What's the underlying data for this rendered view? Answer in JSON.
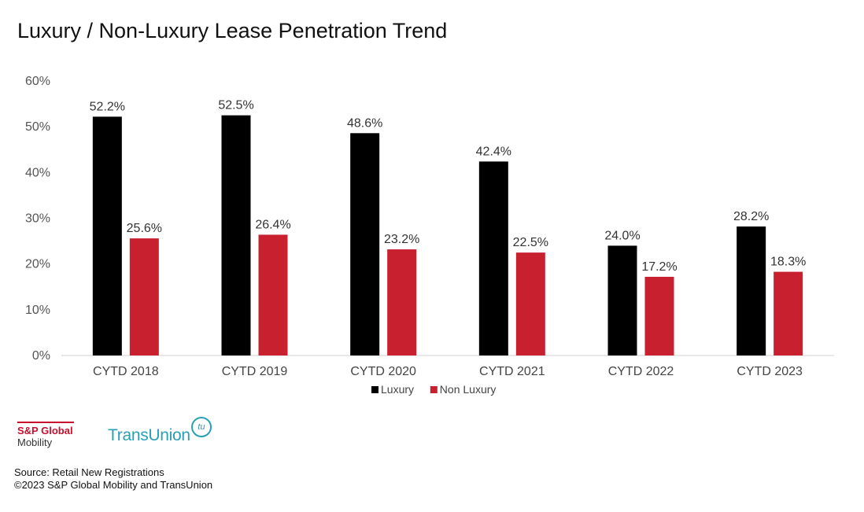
{
  "title": "Luxury / Non-Luxury Lease Penetration Trend",
  "chart_data": {
    "type": "bar",
    "title": "Luxury / Non-Luxury Lease Penetration Trend",
    "categories": [
      "CYTD 2018",
      "CYTD 2019",
      "CYTD 2020",
      "CYTD 2021",
      "CYTD 2022",
      "CYTD 2023"
    ],
    "series": [
      {
        "name": "Luxury",
        "color": "#000000",
        "values": [
          52.2,
          52.5,
          48.6,
          42.4,
          24.0,
          28.2
        ],
        "labels": [
          "52.2%",
          "52.5%",
          "48.6%",
          "42.4%",
          "24.0%",
          "28.2%"
        ]
      },
      {
        "name": "Non Luxury",
        "color": "#c8202f",
        "values": [
          25.6,
          26.4,
          23.2,
          22.5,
          17.2,
          18.3
        ],
        "labels": [
          "25.6%",
          "26.4%",
          "23.2%",
          "22.5%",
          "17.2%",
          "18.3%"
        ]
      }
    ],
    "ylim": [
      0,
      60
    ],
    "yticks": [
      0,
      10,
      20,
      30,
      40,
      50,
      60
    ],
    "ytick_labels": [
      "0%",
      "10%",
      "20%",
      "30%",
      "40%",
      "50%",
      "60%"
    ],
    "xlabel": "",
    "ylabel": "",
    "grid": false,
    "legend_position": "bottom-center"
  },
  "logos": {
    "sp_name": "S&P Global",
    "sp_sub": "Mobility",
    "tu_name": "TransUnion",
    "tu_mark": "tu"
  },
  "source": {
    "line1": "Source: Retail New Registrations",
    "line2": "©2023 S&P Global Mobility and TransUnion"
  }
}
